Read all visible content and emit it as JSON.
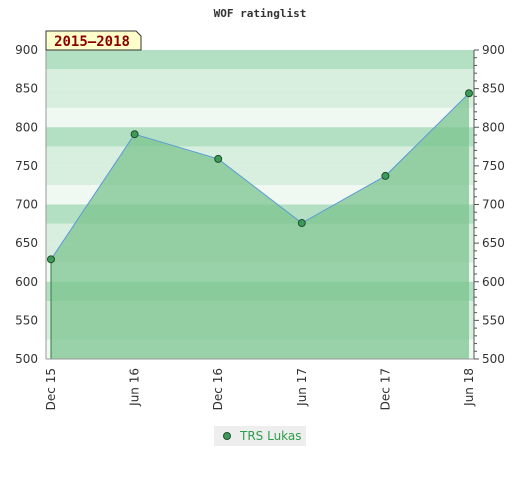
{
  "chart_data": {
    "type": "area",
    "title": "WOF ratinglist",
    "period_label": "2015–2018",
    "x": [
      "Dec 15",
      "Jun 16",
      "Dec 16",
      "Jun 17",
      "Dec 17",
      "Jun 18"
    ],
    "series": [
      {
        "name": "TRS Lukas",
        "values": [
          629,
          791,
          759,
          676,
          737,
          844
        ]
      }
    ],
    "ylim": [
      500,
      900
    ],
    "yticks": [
      500,
      550,
      600,
      650,
      700,
      750,
      800,
      850,
      900
    ],
    "xlabel": "",
    "ylabel": "",
    "grid": true,
    "legend_position": "bottom-center",
    "colors": {
      "fill": "#7cc48f",
      "line": "#5b9bd5",
      "marker": "#3d9a5a",
      "marker_stroke": "#1f4f2a",
      "band_dark": "#b3dfc2",
      "band_mid": "#d8efe0",
      "band_light": "#f0f8f2",
      "range_box": "#ffffcc"
    }
  }
}
